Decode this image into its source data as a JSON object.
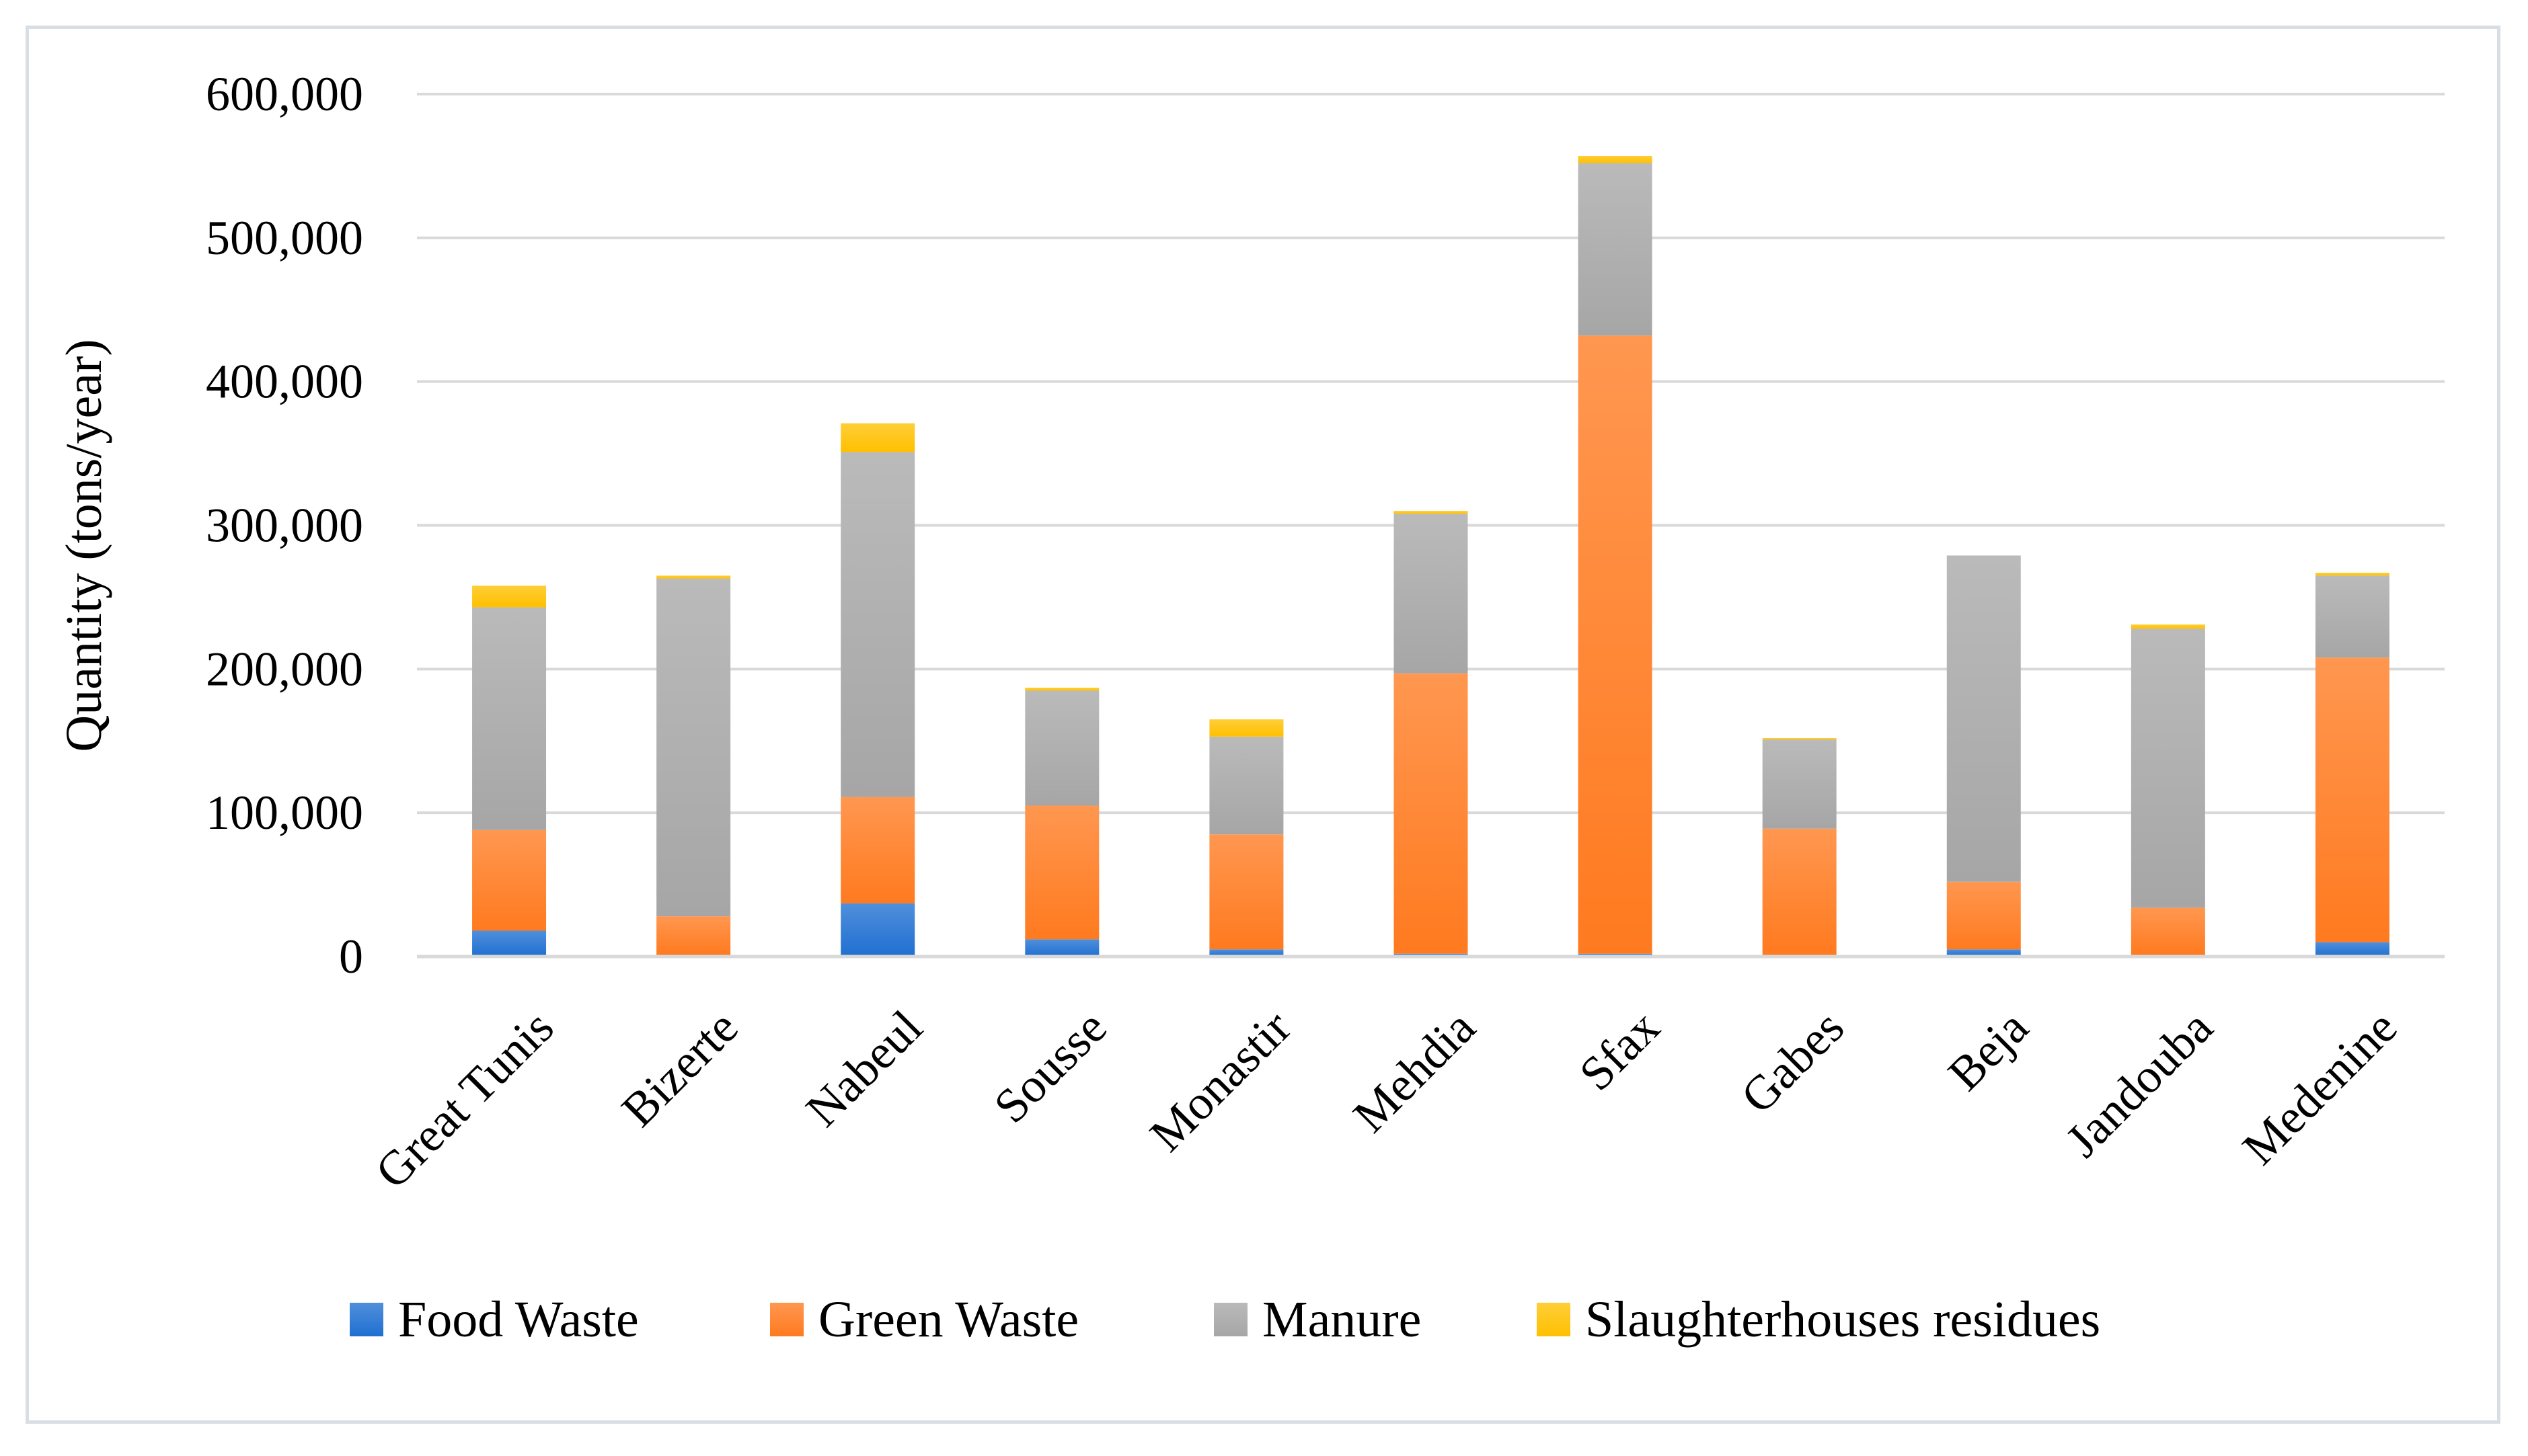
{
  "chart_data": {
    "type": "bar",
    "stacked": true,
    "categories": [
      "Great Tunis",
      "Bizerte",
      "Nabeul",
      "Sousse",
      "Monastir",
      "Mehdia",
      "Sfax",
      "Gabes",
      "Beja",
      "Jandouba",
      "Medenine"
    ],
    "series": [
      {
        "name": "Food Waste",
        "color": "#1f6fd1",
        "values": [
          18000,
          1000,
          37000,
          12000,
          5000,
          2000,
          2000,
          1000,
          5000,
          1000,
          10000
        ]
      },
      {
        "name": "Green Waste",
        "color": "#ff7a1f",
        "values": [
          70000,
          27000,
          74000,
          93000,
          80000,
          195000,
          430000,
          88000,
          47000,
          33000,
          198000
        ]
      },
      {
        "name": "Manure",
        "color": "#a6a6a6",
        "values": [
          155000,
          235000,
          240000,
          80000,
          68000,
          111000,
          120000,
          62000,
          227000,
          194000,
          57000
        ]
      },
      {
        "name": "Slaughterhouses residues",
        "color": "#ffc000",
        "values": [
          15000,
          2000,
          20000,
          2000,
          12000,
          2000,
          5000,
          1000,
          0,
          3000,
          2000
        ]
      }
    ],
    "ylabel": "Quantity (tons/year)",
    "xlabel": "",
    "ylim": [
      0,
      600000
    ],
    "yticks": [
      0,
      100000,
      200000,
      300000,
      400000,
      500000,
      600000
    ],
    "ytick_labels": [
      "0",
      "100,000",
      "200,000",
      "300,000",
      "400,000",
      "500,000",
      "600,000"
    ],
    "grid": true,
    "legend_position": "bottom"
  }
}
